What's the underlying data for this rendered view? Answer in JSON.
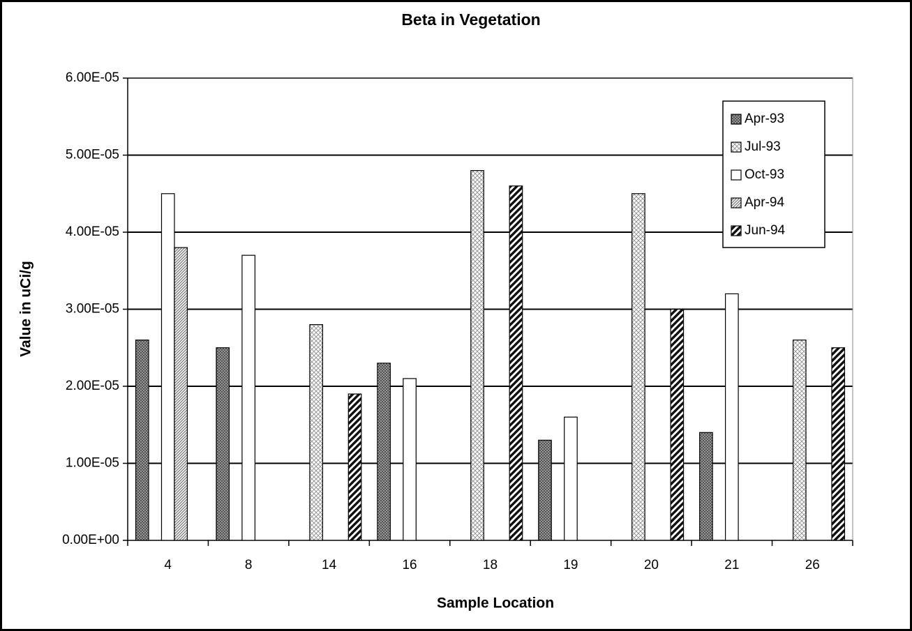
{
  "chart_data": {
    "type": "bar",
    "title": "Beta in Vegetation",
    "x_label": "Sample Location",
    "y_label": "Value in uCi/g",
    "categories": [
      "4",
      "8",
      "14",
      "16",
      "18",
      "19",
      "20",
      "21",
      "26"
    ],
    "series": [
      {
        "name": "Apr-93",
        "color": "#555555",
        "values": [
          2.6e-05,
          2.5e-05,
          null,
          2.3e-05,
          null,
          1.3e-05,
          null,
          1.4e-05,
          null
        ]
      },
      {
        "name": "Jul-93",
        "color": "#999999",
        "values": [
          null,
          null,
          2.8e-05,
          null,
          4.8e-05,
          null,
          4.5e-05,
          null,
          2.6e-05
        ]
      },
      {
        "name": "Oct-93",
        "color": "#ffffff",
        "values": [
          4.5e-05,
          3.7e-05,
          null,
          2.1e-05,
          null,
          1.6e-05,
          null,
          3.2e-05,
          null
        ]
      },
      {
        "name": "Apr-94",
        "color": "#777777",
        "values": [
          3.8e-05,
          null,
          null,
          null,
          null,
          null,
          null,
          null,
          null
        ]
      },
      {
        "name": "Jun-94",
        "color": "#111111",
        "values": [
          null,
          null,
          1.9e-05,
          null,
          4.6e-05,
          null,
          3e-05,
          null,
          2.5e-05
        ]
      }
    ],
    "ylim": [
      0,
      6e-05
    ],
    "yticks": [
      {
        "value": 0,
        "label": "0.00E+00"
      },
      {
        "value": 1e-05,
        "label": "1.00E-05"
      },
      {
        "value": 2e-05,
        "label": "2.00E-05"
      },
      {
        "value": 3e-05,
        "label": "3.00E-05"
      },
      {
        "value": 4e-05,
        "label": "4.00E-05"
      },
      {
        "value": 5e-05,
        "label": "5.00E-05"
      },
      {
        "value": 6e-05,
        "label": "6.00E-05"
      }
    ],
    "grid": true,
    "legend": "upper-right"
  }
}
